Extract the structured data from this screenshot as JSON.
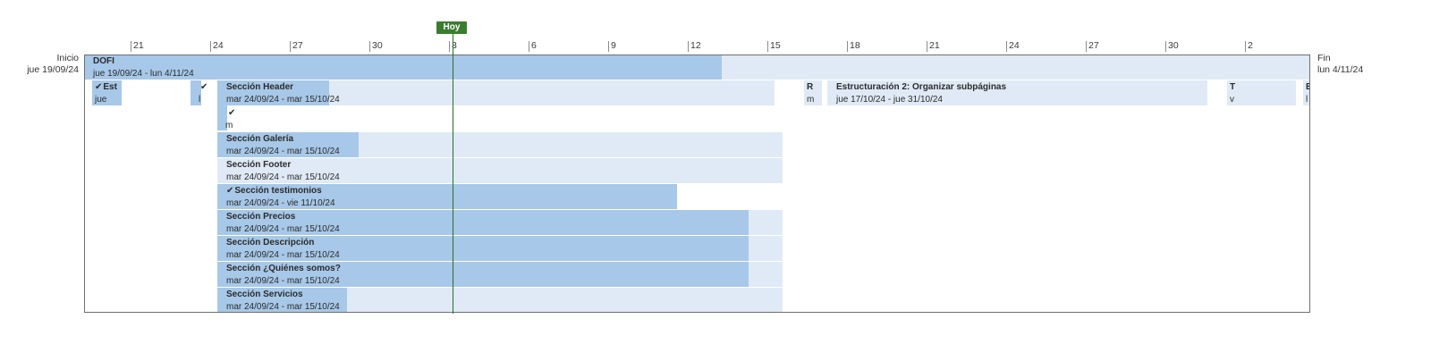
{
  "today": {
    "label": "Hoy"
  },
  "timeline": {
    "ticks": [
      "21",
      "24",
      "27",
      "30",
      "3",
      "6",
      "9",
      "12",
      "15",
      "18",
      "21",
      "24",
      "27",
      "30",
      "2"
    ]
  },
  "start": {
    "label": "Inicio",
    "date": "jue 19/09/24"
  },
  "end": {
    "label": "Fin",
    "date": "lun 4/11/24"
  },
  "summary": {
    "name": "DOFI",
    "dates": "jue 19/09/24 - lun 4/11/24",
    "percent_complete": 52
  },
  "row2": [
    {
      "name": "Est",
      "dates": "jue",
      "done": true
    },
    {
      "name": "",
      "dates": "l",
      "done": true
    },
    {
      "name": "Sección Header",
      "dates": "mar 24/09/24 - mar 15/10/24"
    },
    {
      "name": "R",
      "dates": "m"
    },
    {
      "name": "Estructuración 2: Organizar subpáginas",
      "dates": "jue 17/10/24 - jue 31/10/24"
    },
    {
      "name": "T",
      "dates": "v"
    },
    {
      "name": "E",
      "dates": "l"
    }
  ],
  "tasks": [
    {
      "name": "",
      "dates": "m",
      "done": true
    },
    {
      "name": "Sección Galería",
      "dates": "mar 24/09/24 - mar 15/10/24"
    },
    {
      "name": "Sección Footer",
      "dates": "mar 24/09/24 - mar 15/10/24"
    },
    {
      "name": "Sección testimonios",
      "dates": "mar 24/09/24 - vie 11/10/24",
      "done": true
    },
    {
      "name": "Sección Precios",
      "dates": "mar 24/09/24 - mar 15/10/24"
    },
    {
      "name": "Sección Descripción",
      "dates": "mar 24/09/24 - mar 15/10/24"
    },
    {
      "name": "Sección ¿Quiénes somos?",
      "dates": "mar 24/09/24 - mar 15/10/24"
    },
    {
      "name": "Sección Servicios",
      "dates": "mar 24/09/24 - mar 15/10/24"
    }
  ],
  "check_glyph": "✔"
}
